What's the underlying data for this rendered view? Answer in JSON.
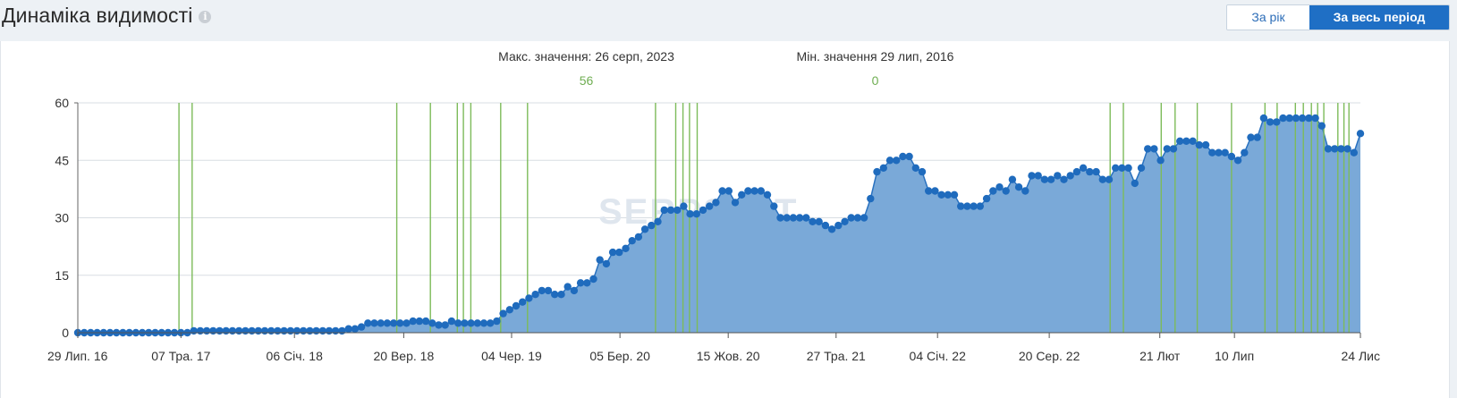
{
  "header": {
    "title": "Динаміка видимості",
    "info_icon": "info-icon",
    "period_year": "За рік",
    "period_all": "За весь період"
  },
  "extremes": {
    "max_label": "Макс. значення: 26 серп, 2023",
    "max_value": "56",
    "min_label": "Мін. значення 29 лип, 2016",
    "min_value": "0"
  },
  "colors": {
    "area_fill": "#7aa9d8",
    "line": "#2a72c0",
    "marker": "#1f6bbd",
    "event_line": "#7dbb5a",
    "grid": "#d8dde3"
  },
  "chart_data": {
    "type": "area",
    "title": "",
    "xlabel": "",
    "ylabel": "",
    "ylim": [
      0,
      60
    ],
    "yticks": [
      0,
      15,
      30,
      45,
      60
    ],
    "grid": true,
    "watermark": "SERPSTAT",
    "x_ticks": [
      {
        "label": "29 Лип. 16",
        "t": 0.0
      },
      {
        "label": "07 Тра. 17",
        "t": 0.0804
      },
      {
        "label": "06 Січ. 18",
        "t": 0.1689
      },
      {
        "label": "20 Вер. 18",
        "t": 0.2541
      },
      {
        "label": "04 Чер. 19",
        "t": 0.3382
      },
      {
        "label": "05 Бер. 20",
        "t": 0.4227
      },
      {
        "label": "15 Жов. 20",
        "t": 0.5071
      },
      {
        "label": "27 Тра. 21",
        "t": 0.5912
      },
      {
        "label": "04 Січ. 22",
        "t": 0.6703
      },
      {
        "label": "20 Сер. 22",
        "t": 0.7574
      },
      {
        "label": "21 Лют",
        "t": 0.8436
      },
      {
        "label": "10 Лип",
        "t": 0.9018
      },
      {
        "label": "24 Лис",
        "t": 1.0
      }
    ],
    "series": [
      {
        "values": [
          0,
          0,
          0,
          0,
          0,
          0,
          0,
          0,
          0,
          0,
          0,
          0,
          0,
          0,
          0,
          0,
          0,
          0,
          0.5,
          0.5,
          0.5,
          0.5,
          0.5,
          0.5,
          0.5,
          0.5,
          0.5,
          0.5,
          0.5,
          0.5,
          0.5,
          0.5,
          0.5,
          0.5,
          0.5,
          0.5,
          0.5,
          0.5,
          0.5,
          0.5,
          0.5,
          0.5,
          1,
          1,
          1.5,
          2.5,
          2.5,
          2.5,
          2.5,
          2.5,
          2.5,
          2.5,
          3,
          3,
          3,
          2.5,
          2,
          2,
          3,
          2.5,
          2.5,
          2.5,
          2.5,
          2.5,
          2.5,
          3,
          5,
          6,
          7,
          8,
          9,
          10,
          11,
          11,
          10,
          10,
          12,
          11,
          13,
          13,
          14,
          19,
          18,
          21,
          21,
          22,
          24,
          25,
          27,
          28,
          29,
          32,
          32,
          32,
          33,
          31,
          31,
          32,
          33,
          34,
          37,
          37,
          34,
          36,
          37,
          37,
          37,
          36,
          33,
          30,
          30,
          30,
          30,
          30,
          29,
          29,
          28,
          27,
          28,
          29,
          30,
          30,
          30,
          35,
          42,
          43,
          45,
          45,
          46,
          46,
          43,
          42,
          37,
          37,
          36,
          36,
          36,
          33,
          33,
          33,
          33,
          35,
          37,
          38,
          37,
          40,
          38,
          37,
          41,
          41,
          40,
          40,
          41,
          40,
          41,
          42,
          43,
          42,
          42,
          40,
          40,
          43,
          43,
          43,
          39,
          43,
          48,
          48,
          45,
          48,
          48,
          50,
          50,
          50,
          49,
          49,
          47,
          47,
          47,
          46,
          45,
          47,
          51,
          51,
          56,
          55,
          55,
          56,
          56,
          56,
          56,
          56,
          56,
          54,
          48,
          48,
          48,
          48,
          47,
          52
        ],
        "event_markers": [
          0.0789,
          0.0891,
          0.2487,
          0.2749,
          0.2959,
          0.3006,
          0.3064,
          0.3297,
          0.3506,
          0.4504,
          0.4662,
          0.4718,
          0.4769,
          0.4829,
          0.8049,
          0.8152,
          0.8447,
          0.8555,
          0.8728,
          0.8995,
          0.9256,
          0.9351,
          0.9493,
          0.9555,
          0.9618,
          0.9667,
          0.9715,
          0.9824,
          0.9872,
          0.9911
        ]
      }
    ]
  }
}
